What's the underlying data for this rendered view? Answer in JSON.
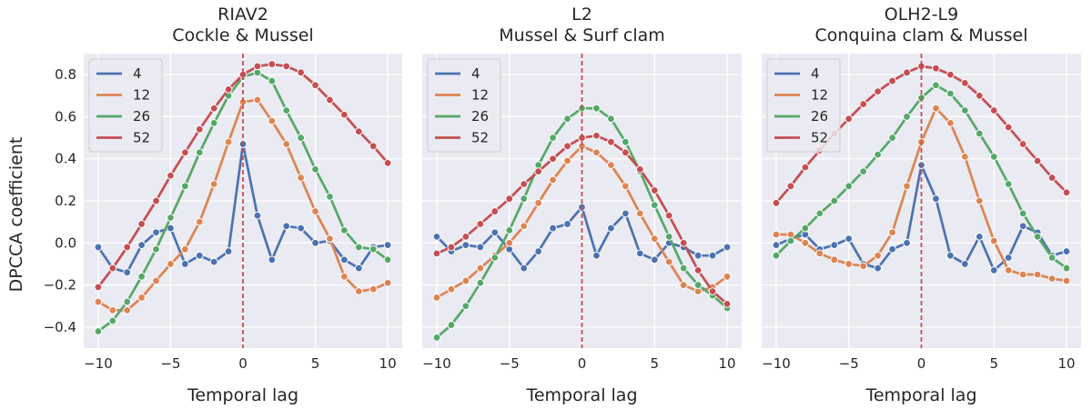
{
  "figure": {
    "ylabel": "DPCCA coefficient"
  },
  "chart_data": [
    {
      "type": "line",
      "title_line1": "RIAV2",
      "title_line2": "Cockle & Mussel",
      "xlabel": "Temporal lag",
      "ylabel": "DPCCA coefficient",
      "xlim": [
        -11,
        11
      ],
      "ylim": [
        -0.5,
        0.9
      ],
      "xticks": [
        -10,
        -5,
        0,
        5,
        10
      ],
      "xtick_labels": [
        "−10",
        "−5",
        "0",
        "5",
        "10"
      ],
      "yticks": [
        -0.4,
        -0.2,
        0.0,
        0.2,
        0.4,
        0.6,
        0.8
      ],
      "ytick_labels": [
        "−0.4",
        "−0.2",
        "0.0",
        "0.2",
        "0.4",
        "0.6",
        "0.8"
      ],
      "grid": true,
      "legend_position": "top-left",
      "vline_x": 0,
      "x": [
        -10,
        -9,
        -8,
        -7,
        -6,
        -5,
        -4,
        -3,
        -2,
        -1,
        0,
        1,
        2,
        3,
        4,
        5,
        6,
        7,
        8,
        9,
        10
      ],
      "series": [
        {
          "name": "4",
          "color": "#4c72b0",
          "values": [
            -0.02,
            -0.12,
            -0.14,
            -0.01,
            0.05,
            0.07,
            -0.1,
            -0.06,
            -0.09,
            -0.04,
            0.47,
            0.13,
            -0.08,
            0.08,
            0.07,
            0.0,
            0.01,
            -0.08,
            -0.12,
            -0.02,
            -0.01
          ]
        },
        {
          "name": "12",
          "color": "#dd8452",
          "values": [
            -0.28,
            -0.32,
            -0.32,
            -0.26,
            -0.18,
            -0.1,
            -0.03,
            0.1,
            0.28,
            0.48,
            0.67,
            0.68,
            0.58,
            0.47,
            0.31,
            0.15,
            0.02,
            -0.16,
            -0.23,
            -0.22,
            -0.19
          ]
        },
        {
          "name": "26",
          "color": "#55a868",
          "values": [
            -0.42,
            -0.37,
            -0.28,
            -0.16,
            -0.03,
            0.12,
            0.27,
            0.43,
            0.57,
            0.7,
            0.79,
            0.81,
            0.77,
            0.63,
            0.5,
            0.35,
            0.22,
            0.06,
            -0.02,
            -0.03,
            -0.08
          ]
        },
        {
          "name": "52",
          "color": "#c44e52",
          "values": [
            -0.21,
            -0.12,
            -0.02,
            0.09,
            0.2,
            0.32,
            0.43,
            0.54,
            0.64,
            0.73,
            0.8,
            0.84,
            0.85,
            0.84,
            0.81,
            0.75,
            0.68,
            0.61,
            0.53,
            0.46,
            0.38
          ]
        }
      ]
    },
    {
      "type": "line",
      "title_line1": "L2",
      "title_line2": "Mussel & Surf clam",
      "xlabel": "Temporal lag",
      "xlim": [
        -11,
        11
      ],
      "ylim": [
        -0.5,
        0.9
      ],
      "xticks": [
        -10,
        -5,
        0,
        5,
        10
      ],
      "xtick_labels": [
        "−10",
        "−5",
        "0",
        "5",
        "10"
      ],
      "grid": true,
      "legend_position": "top-left",
      "vline_x": 0,
      "x": [
        -10,
        -9,
        -8,
        -7,
        -6,
        -5,
        -4,
        -3,
        -2,
        -1,
        0,
        1,
        2,
        3,
        4,
        5,
        6,
        7,
        8,
        9,
        10
      ],
      "series": [
        {
          "name": "4",
          "color": "#4c72b0",
          "values": [
            0.03,
            -0.04,
            -0.01,
            -0.02,
            0.05,
            -0.03,
            -0.12,
            -0.04,
            0.07,
            0.09,
            0.17,
            -0.06,
            0.07,
            0.14,
            -0.05,
            -0.08,
            0.0,
            -0.02,
            -0.06,
            -0.06,
            -0.02
          ]
        },
        {
          "name": "12",
          "color": "#dd8452",
          "values": [
            -0.26,
            -0.22,
            -0.18,
            -0.12,
            -0.06,
            0.0,
            0.08,
            0.19,
            0.3,
            0.39,
            0.46,
            0.43,
            0.37,
            0.27,
            0.14,
            0.02,
            -0.09,
            -0.2,
            -0.23,
            -0.21,
            -0.16
          ]
        },
        {
          "name": "26",
          "color": "#55a868",
          "values": [
            -0.45,
            -0.39,
            -0.3,
            -0.19,
            -0.07,
            0.06,
            0.21,
            0.37,
            0.5,
            0.59,
            0.64,
            0.64,
            0.59,
            0.48,
            0.34,
            0.18,
            0.03,
            -0.12,
            -0.2,
            -0.25,
            -0.31
          ]
        },
        {
          "name": "52",
          "color": "#c44e52",
          "values": [
            -0.05,
            -0.02,
            0.03,
            0.09,
            0.15,
            0.21,
            0.28,
            0.34,
            0.4,
            0.46,
            0.5,
            0.51,
            0.48,
            0.43,
            0.35,
            0.25,
            0.13,
            0.0,
            -0.13,
            -0.23,
            -0.29
          ]
        }
      ]
    },
    {
      "type": "line",
      "title_line1": "OLH2-L9",
      "title_line2": "Conquina clam & Mussel",
      "xlabel": "Temporal lag",
      "xlim": [
        -11,
        11
      ],
      "ylim": [
        -0.5,
        0.9
      ],
      "xticks": [
        -10,
        -5,
        0,
        5,
        10
      ],
      "xtick_labels": [
        "−10",
        "−5",
        "0",
        "5",
        "10"
      ],
      "grid": true,
      "legend_position": "top-left",
      "vline_x": 0,
      "x": [
        -10,
        -9,
        -8,
        -7,
        -6,
        -5,
        -4,
        -3,
        -2,
        -1,
        0,
        1,
        2,
        3,
        4,
        5,
        6,
        7,
        8,
        9,
        10
      ],
      "series": [
        {
          "name": "4",
          "color": "#4c72b0",
          "values": [
            -0.01,
            0.02,
            0.04,
            -0.03,
            -0.01,
            0.02,
            -0.1,
            -0.12,
            -0.03,
            0.0,
            0.37,
            0.21,
            -0.06,
            -0.1,
            0.03,
            -0.13,
            -0.07,
            0.08,
            0.05,
            -0.06,
            -0.04
          ]
        },
        {
          "name": "12",
          "color": "#dd8452",
          "values": [
            0.04,
            0.04,
            0.0,
            -0.05,
            -0.08,
            -0.1,
            -0.11,
            -0.06,
            0.05,
            0.27,
            0.48,
            0.64,
            0.57,
            0.41,
            0.2,
            0.01,
            -0.13,
            -0.15,
            -0.15,
            -0.17,
            -0.18
          ]
        },
        {
          "name": "26",
          "color": "#55a868",
          "values": [
            -0.06,
            0.01,
            0.07,
            0.14,
            0.2,
            0.27,
            0.34,
            0.42,
            0.5,
            0.6,
            0.69,
            0.75,
            0.71,
            0.63,
            0.52,
            0.41,
            0.28,
            0.14,
            0.03,
            -0.07,
            -0.12
          ]
        },
        {
          "name": "52",
          "color": "#c44e52",
          "values": [
            0.19,
            0.27,
            0.36,
            0.44,
            0.52,
            0.59,
            0.66,
            0.72,
            0.77,
            0.81,
            0.84,
            0.83,
            0.8,
            0.76,
            0.7,
            0.63,
            0.55,
            0.47,
            0.39,
            0.31,
            0.24
          ]
        }
      ]
    }
  ]
}
